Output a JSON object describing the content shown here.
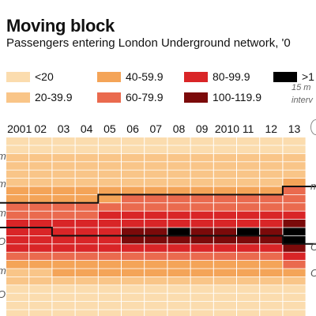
{
  "title": "Moving block",
  "subtitle": "Passengers entering London Underground network, '0",
  "legend": [
    {
      "label": "<20",
      "color": "#fbdcae"
    },
    {
      "label": "20-39.9",
      "color": "#f9c588"
    },
    {
      "label": "40-59.9",
      "color": "#f4a458"
    },
    {
      "label": "60-79.9",
      "color": "#ea6a4e"
    },
    {
      "label": "80-99.9",
      "color": "#d92527"
    },
    {
      "label": "100-119.9",
      "color": "#7b0a0a"
    },
    {
      "label": ">1",
      "color": "#000000"
    }
  ],
  "notes": [
    "15 m",
    "interv"
  ],
  "row_labels": [
    "m",
    "m",
    "m",
    "O",
    "m",
    "O",
    "m"
  ],
  "chart_data": {
    "type": "heatmap",
    "title": "Moving block",
    "subtitle": "Passengers entering London Underground network, '0",
    "x_categories": [
      "2001",
      "02",
      "03",
      "04",
      "05",
      "06",
      "07",
      "08",
      "09",
      "2010",
      "11",
      "12",
      "13"
    ],
    "bins": [
      "<20",
      "20-39.9",
      "40-59.9",
      "60-79.9",
      "80-99.9",
      "100-119.9",
      ">1"
    ],
    "rows_per_year_bin_index": [
      [
        0,
        0,
        0,
        0,
        0,
        0,
        0,
        0,
        0,
        0,
        0,
        0,
        0
      ],
      [
        0,
        0,
        0,
        0,
        0,
        0,
        0,
        0,
        0,
        0,
        0,
        0,
        0
      ],
      [
        1,
        1,
        1,
        1,
        1,
        1,
        1,
        1,
        1,
        1,
        1,
        1,
        1
      ],
      [
        1,
        1,
        1,
        1,
        1,
        1,
        1,
        1,
        1,
        1,
        1,
        1,
        1
      ],
      [
        1,
        1,
        1,
        1,
        1,
        1,
        1,
        1,
        1,
        1,
        1,
        1,
        1
      ],
      [
        1,
        1,
        1,
        1,
        1,
        1,
        1,
        1,
        1,
        1,
        1,
        1,
        2
      ],
      [
        2,
        2,
        2,
        2,
        2,
        2,
        2,
        2,
        2,
        2,
        2,
        2,
        3
      ],
      [
        2,
        2,
        2,
        2,
        2,
        3,
        3,
        3,
        3,
        3,
        3,
        3,
        3
      ],
      [
        3,
        3,
        3,
        3,
        3,
        3,
        3,
        3,
        3,
        3,
        3,
        3,
        3
      ],
      [
        3,
        3,
        3,
        3,
        4,
        4,
        4,
        4,
        4,
        4,
        4,
        4,
        4
      ],
      [
        4,
        4,
        4,
        4,
        4,
        4,
        4,
        4,
        4,
        4,
        4,
        4,
        5
      ],
      [
        4,
        4,
        4,
        4,
        4,
        5,
        5,
        6,
        5,
        5,
        6,
        5,
        6
      ],
      [
        4,
        4,
        4,
        4,
        4,
        5,
        5,
        5,
        5,
        5,
        5,
        5,
        6
      ],
      [
        4,
        4,
        4,
        4,
        4,
        4,
        4,
        4,
        4,
        4,
        4,
        4,
        5
      ],
      [
        3,
        3,
        3,
        3,
        3,
        3,
        3,
        3,
        3,
        3,
        3,
        3,
        4
      ],
      [
        2,
        2,
        2,
        2,
        2,
        2,
        2,
        2,
        2,
        2,
        2,
        2,
        3
      ],
      [
        1,
        1,
        2,
        2,
        2,
        2,
        2,
        2,
        2,
        2,
        2,
        2,
        2
      ],
      [
        1,
        1,
        1,
        1,
        1,
        1,
        1,
        1,
        1,
        1,
        1,
        1,
        1
      ],
      [
        0,
        0,
        0,
        0,
        0,
        0,
        0,
        0,
        0,
        0,
        0,
        0,
        0
      ],
      [
        0,
        0,
        0,
        0,
        0,
        0,
        0,
        0,
        0,
        0,
        0,
        0,
        0
      ],
      [
        0,
        0,
        0,
        0,
        0,
        0,
        0,
        0,
        0,
        0,
        0,
        0,
        0
      ],
      [
        0,
        0,
        0,
        0,
        0,
        0,
        0,
        0,
        0,
        0,
        0,
        0,
        0
      ]
    ],
    "peak_band_start_row": [
      8,
      8,
      8,
      8,
      7,
      7,
      7,
      7,
      7,
      7,
      7,
      7,
      6
    ],
    "peak_band_end_row": [
      11,
      11,
      12,
      12,
      12,
      12,
      12,
      12,
      12,
      12,
      12,
      12,
      13
    ]
  }
}
